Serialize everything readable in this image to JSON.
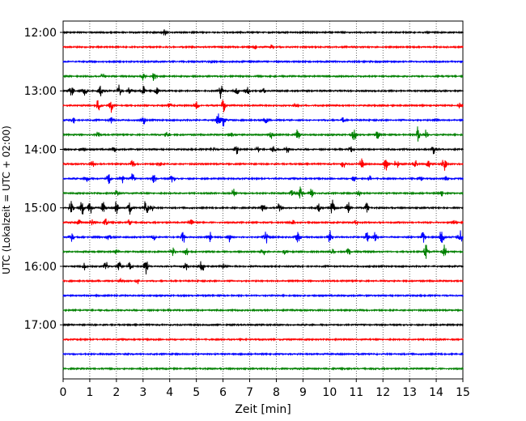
{
  "chart_data": {
    "type": "line",
    "title": "",
    "xlabel": "Zeit  [min]",
    "ylabel": "UTC (Lokalzeit = UTC + 02:00)",
    "xlim": [
      0,
      15
    ],
    "x_ticks": [
      0,
      1,
      2,
      3,
      4,
      5,
      6,
      7,
      8,
      9,
      10,
      11,
      12,
      13,
      14,
      15
    ],
    "x_tick_labels": [
      "0",
      "1",
      "2",
      "3",
      "4",
      "5",
      "6",
      "7",
      "8",
      "9",
      "10",
      "11",
      "12",
      "13",
      "14",
      "15"
    ],
    "y_tick_labels": [
      "12:00",
      "13:00",
      "14:00",
      "15:00",
      "16:00",
      "17:00"
    ],
    "y_tick_trace_index": [
      0,
      4,
      8,
      12,
      16,
      20
    ],
    "grid": "vertical dotted",
    "trace_colors": [
      "#000000",
      "#ff0000",
      "#0000ff",
      "#008000"
    ],
    "traces": [
      {
        "start": "12:00",
        "bursts": [
          {
            "t": 3.8,
            "amp": 0.35
          }
        ]
      },
      {
        "start": "12:15",
        "bursts": [
          {
            "t": 7.2,
            "amp": 0.2
          },
          {
            "t": 7.8,
            "amp": 0.2
          }
        ]
      },
      {
        "start": "12:30",
        "bursts": [
          {
            "t": 5.6,
            "amp": 0.15
          }
        ]
      },
      {
        "start": "12:45",
        "bursts": [
          {
            "t": 1.5,
            "amp": 0.3
          },
          {
            "t": 3.0,
            "amp": 0.5
          },
          {
            "t": 3.4,
            "amp": 0.6
          }
        ]
      },
      {
        "start": "13:00",
        "bursts": [
          {
            "t": 0.3,
            "amp": 0.8
          },
          {
            "t": 0.8,
            "amp": 0.7
          },
          {
            "t": 1.4,
            "amp": 0.6
          },
          {
            "t": 2.1,
            "amp": 0.7
          },
          {
            "t": 2.5,
            "amp": 0.5
          },
          {
            "t": 3.0,
            "amp": 0.6
          },
          {
            "t": 3.5,
            "amp": 0.4
          },
          {
            "t": 5.9,
            "amp": 0.9
          },
          {
            "t": 6.5,
            "amp": 0.6
          },
          {
            "t": 6.9,
            "amp": 0.5
          },
          {
            "t": 7.5,
            "amp": 0.3
          }
        ]
      },
      {
        "start": "13:15",
        "bursts": [
          {
            "t": 1.3,
            "amp": 0.6
          },
          {
            "t": 1.8,
            "amp": 0.8
          },
          {
            "t": 4.0,
            "amp": 0.3
          },
          {
            "t": 5.0,
            "amp": 0.4
          },
          {
            "t": 6.0,
            "amp": 0.7
          },
          {
            "t": 8.7,
            "amp": 0.3
          },
          {
            "t": 14.9,
            "amp": 0.5
          }
        ]
      },
      {
        "start": "13:30",
        "bursts": [
          {
            "t": 0.4,
            "amp": 0.3
          },
          {
            "t": 1.8,
            "amp": 0.4
          },
          {
            "t": 3.0,
            "amp": 0.5
          },
          {
            "t": 5.8,
            "amp": 0.9
          },
          {
            "t": 6.0,
            "amp": 0.7
          },
          {
            "t": 7.6,
            "amp": 0.4
          },
          {
            "t": 10.5,
            "amp": 0.3
          },
          {
            "t": 14.0,
            "amp": 0.3
          }
        ]
      },
      {
        "start": "13:45",
        "bursts": [
          {
            "t": 1.3,
            "amp": 0.3
          },
          {
            "t": 3.9,
            "amp": 0.4
          },
          {
            "t": 6.3,
            "amp": 0.3
          },
          {
            "t": 7.8,
            "amp": 0.4
          },
          {
            "t": 8.8,
            "amp": 0.6
          },
          {
            "t": 10.9,
            "amp": 0.7
          },
          {
            "t": 11.8,
            "amp": 0.5
          },
          {
            "t": 13.3,
            "amp": 0.9
          },
          {
            "t": 13.6,
            "amp": 0.5
          }
        ]
      },
      {
        "start": "14:00",
        "bursts": [
          {
            "t": 0.7,
            "amp": 0.3
          },
          {
            "t": 1.9,
            "amp": 0.3
          },
          {
            "t": 5.6,
            "amp": 0.3
          },
          {
            "t": 6.5,
            "amp": 0.5
          },
          {
            "t": 7.3,
            "amp": 0.3
          },
          {
            "t": 7.9,
            "amp": 0.5
          },
          {
            "t": 8.4,
            "amp": 0.5
          },
          {
            "t": 10.8,
            "amp": 0.3
          },
          {
            "t": 13.9,
            "amp": 0.5
          }
        ]
      },
      {
        "start": "14:15",
        "bursts": [
          {
            "t": 1.1,
            "amp": 0.3
          },
          {
            "t": 2.6,
            "amp": 0.4
          },
          {
            "t": 3.6,
            "amp": 0.3
          },
          {
            "t": 10.5,
            "amp": 0.5
          },
          {
            "t": 11.2,
            "amp": 0.6
          },
          {
            "t": 12.1,
            "amp": 0.9
          },
          {
            "t": 12.5,
            "amp": 0.6
          },
          {
            "t": 13.2,
            "amp": 0.5
          },
          {
            "t": 13.7,
            "amp": 0.4
          },
          {
            "t": 14.3,
            "amp": 0.9
          }
        ]
      },
      {
        "start": "14:30",
        "bursts": [
          {
            "t": 0.9,
            "amp": 0.6
          },
          {
            "t": 1.7,
            "amp": 0.7
          },
          {
            "t": 2.2,
            "amp": 0.6
          },
          {
            "t": 2.6,
            "amp": 0.6
          },
          {
            "t": 3.4,
            "amp": 0.5
          },
          {
            "t": 4.1,
            "amp": 0.5
          },
          {
            "t": 10.9,
            "amp": 0.4
          },
          {
            "t": 11.5,
            "amp": 0.3
          },
          {
            "t": 13.4,
            "amp": 0.3
          },
          {
            "t": 14.4,
            "amp": 0.3
          }
        ]
      },
      {
        "start": "14:45",
        "bursts": [
          {
            "t": 2.0,
            "amp": 0.3
          },
          {
            "t": 6.4,
            "amp": 0.5
          },
          {
            "t": 8.6,
            "amp": 0.6
          },
          {
            "t": 8.9,
            "amp": 0.7
          },
          {
            "t": 9.3,
            "amp": 0.6
          },
          {
            "t": 11.1,
            "amp": 0.3
          },
          {
            "t": 14.2,
            "amp": 0.3
          }
        ]
      },
      {
        "start": "15:00",
        "bursts": [
          {
            "t": 0.3,
            "amp": 0.8
          },
          {
            "t": 0.7,
            "amp": 0.9
          },
          {
            "t": 1.0,
            "amp": 0.8
          },
          {
            "t": 1.5,
            "amp": 0.7
          },
          {
            "t": 2.0,
            "amp": 0.8
          },
          {
            "t": 2.5,
            "amp": 0.7
          },
          {
            "t": 3.1,
            "amp": 0.9
          },
          {
            "t": 3.3,
            "amp": 0.6
          },
          {
            "t": 7.5,
            "amp": 0.6
          },
          {
            "t": 8.1,
            "amp": 0.5
          },
          {
            "t": 9.6,
            "amp": 0.5
          },
          {
            "t": 10.1,
            "amp": 0.9
          },
          {
            "t": 10.7,
            "amp": 0.6
          },
          {
            "t": 11.4,
            "amp": 0.6
          }
        ]
      },
      {
        "start": "15:15",
        "bursts": [
          {
            "t": 0.6,
            "amp": 0.3
          },
          {
            "t": 1.1,
            "amp": 0.4
          },
          {
            "t": 1.6,
            "amp": 0.4
          },
          {
            "t": 2.5,
            "amp": 0.5
          },
          {
            "t": 4.8,
            "amp": 0.4
          },
          {
            "t": 8.6,
            "amp": 0.3
          },
          {
            "t": 11.0,
            "amp": 0.3
          },
          {
            "t": 14.7,
            "amp": 0.3
          }
        ]
      },
      {
        "start": "15:30",
        "bursts": [
          {
            "t": 0.3,
            "amp": 0.5
          },
          {
            "t": 1.7,
            "amp": 0.3
          },
          {
            "t": 3.4,
            "amp": 0.3
          },
          {
            "t": 4.5,
            "amp": 0.6
          },
          {
            "t": 5.5,
            "amp": 0.7
          },
          {
            "t": 6.2,
            "amp": 0.6
          },
          {
            "t": 7.6,
            "amp": 0.7
          },
          {
            "t": 8.8,
            "amp": 0.9
          },
          {
            "t": 10.0,
            "amp": 0.8
          },
          {
            "t": 11.4,
            "amp": 0.6
          },
          {
            "t": 11.7,
            "amp": 0.5
          },
          {
            "t": 13.5,
            "amp": 0.6
          },
          {
            "t": 14.2,
            "amp": 0.9
          },
          {
            "t": 14.9,
            "amp": 0.8
          }
        ]
      },
      {
        "start": "15:45",
        "bursts": [
          {
            "t": 2.0,
            "amp": 0.3
          },
          {
            "t": 4.1,
            "amp": 0.6
          },
          {
            "t": 4.6,
            "amp": 0.5
          },
          {
            "t": 7.5,
            "amp": 0.4
          },
          {
            "t": 8.3,
            "amp": 0.3
          },
          {
            "t": 10.1,
            "amp": 0.3
          },
          {
            "t": 10.7,
            "amp": 0.4
          },
          {
            "t": 13.6,
            "amp": 0.9
          },
          {
            "t": 14.3,
            "amp": 0.8
          }
        ]
      },
      {
        "start": "16:00",
        "bursts": [
          {
            "t": 0.8,
            "amp": 0.4
          },
          {
            "t": 1.6,
            "amp": 0.6
          },
          {
            "t": 2.1,
            "amp": 0.5
          },
          {
            "t": 2.5,
            "amp": 0.4
          },
          {
            "t": 3.1,
            "amp": 0.9
          },
          {
            "t": 4.6,
            "amp": 0.4
          },
          {
            "t": 5.2,
            "amp": 0.9
          },
          {
            "t": 6.0,
            "amp": 0.3
          }
        ]
      },
      {
        "start": "16:15",
        "bursts": [
          {
            "t": 2.2,
            "amp": 0.4
          },
          {
            "t": 2.8,
            "amp": 0.3
          }
        ]
      },
      {
        "start": "16:30",
        "bursts": []
      },
      {
        "start": "16:45",
        "bursts": []
      },
      {
        "start": "17:00",
        "bursts": []
      },
      {
        "start": "17:15",
        "bursts": []
      },
      {
        "start": "17:30",
        "bursts": []
      },
      {
        "start": "17:45",
        "bursts": []
      }
    ]
  }
}
